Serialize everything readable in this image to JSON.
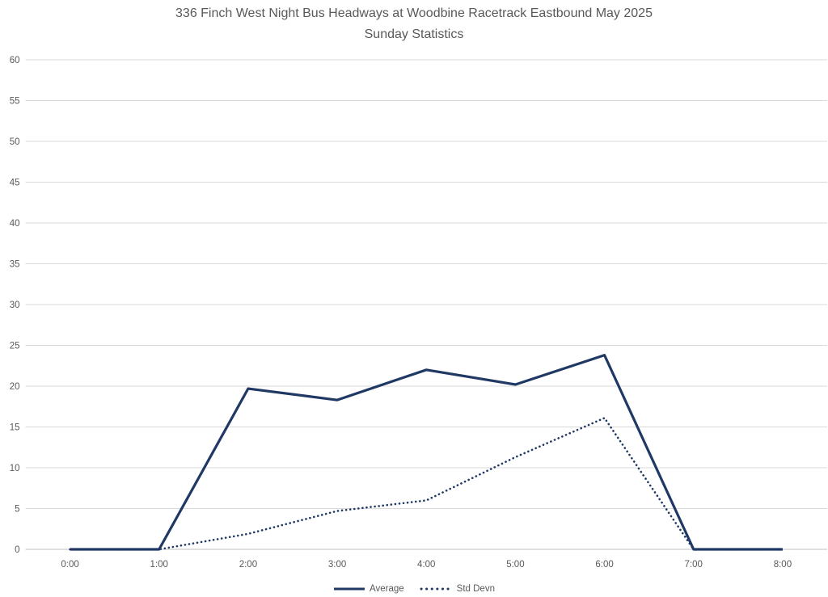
{
  "title": "336 Finch West Night Bus Headways at Woodbine Racetrack Eastbound May 2025",
  "subtitle": "Sunday Statistics",
  "chart_data": {
    "type": "line",
    "categories": [
      "0:00",
      "1:00",
      "2:00",
      "3:00",
      "4:00",
      "5:00",
      "6:00",
      "7:00",
      "8:00"
    ],
    "series": [
      {
        "name": "Average",
        "style": "solid",
        "values": [
          0,
          0,
          19.7,
          18.3,
          22.0,
          20.2,
          23.8,
          0,
          0
        ]
      },
      {
        "name": "Std Devn",
        "style": "dotted",
        "values": [
          0,
          0,
          1.9,
          4.7,
          6.0,
          11.3,
          16.1,
          0,
          0
        ]
      }
    ],
    "xlabel": "",
    "ylabel": "",
    "ylim": [
      0,
      60
    ],
    "y_ticks": [
      0,
      5,
      10,
      15,
      20,
      25,
      30,
      35,
      40,
      45,
      50,
      55,
      60
    ],
    "grid": true,
    "legend_position": "bottom"
  },
  "colors": {
    "series_line": "#1f3864",
    "gridline": "#d9d9d9",
    "axis_line": "#bfbfbf",
    "text": "#595959",
    "background": "#ffffff"
  }
}
